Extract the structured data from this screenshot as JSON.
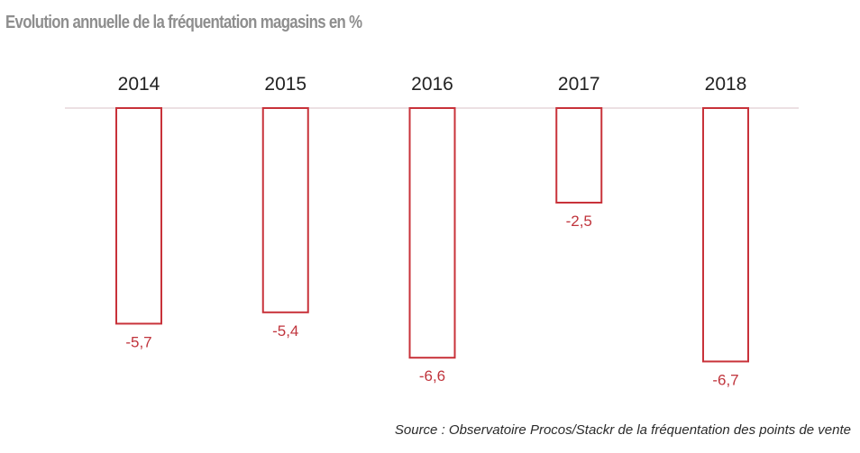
{
  "title": "Evolution annuelle de la fréquentation magasins en %",
  "source": "Source : Observatoire Procos/Stackr de la fréquentation des points de vente",
  "colors": {
    "bar_stroke": "#c8323a",
    "value_label": "#c0343c",
    "axis_line": "#e6d6da",
    "title": "#8e8e8e",
    "category_label": "#222222"
  },
  "chart_data": {
    "type": "bar",
    "categories": [
      "2014",
      "2015",
      "2016",
      "2017",
      "2018"
    ],
    "values": [
      -5.7,
      -5.4,
      -6.6,
      -2.5,
      -6.7
    ],
    "value_labels": [
      "-5,7",
      "-5,4",
      "-6,6",
      "-2,5",
      "-6,7"
    ],
    "title": "Evolution annuelle de la fréquentation magasins en %",
    "xlabel": "",
    "ylabel": "",
    "ylim": [
      -7,
      0
    ],
    "grid": false,
    "legend": "none",
    "category_axis_position": "top"
  }
}
